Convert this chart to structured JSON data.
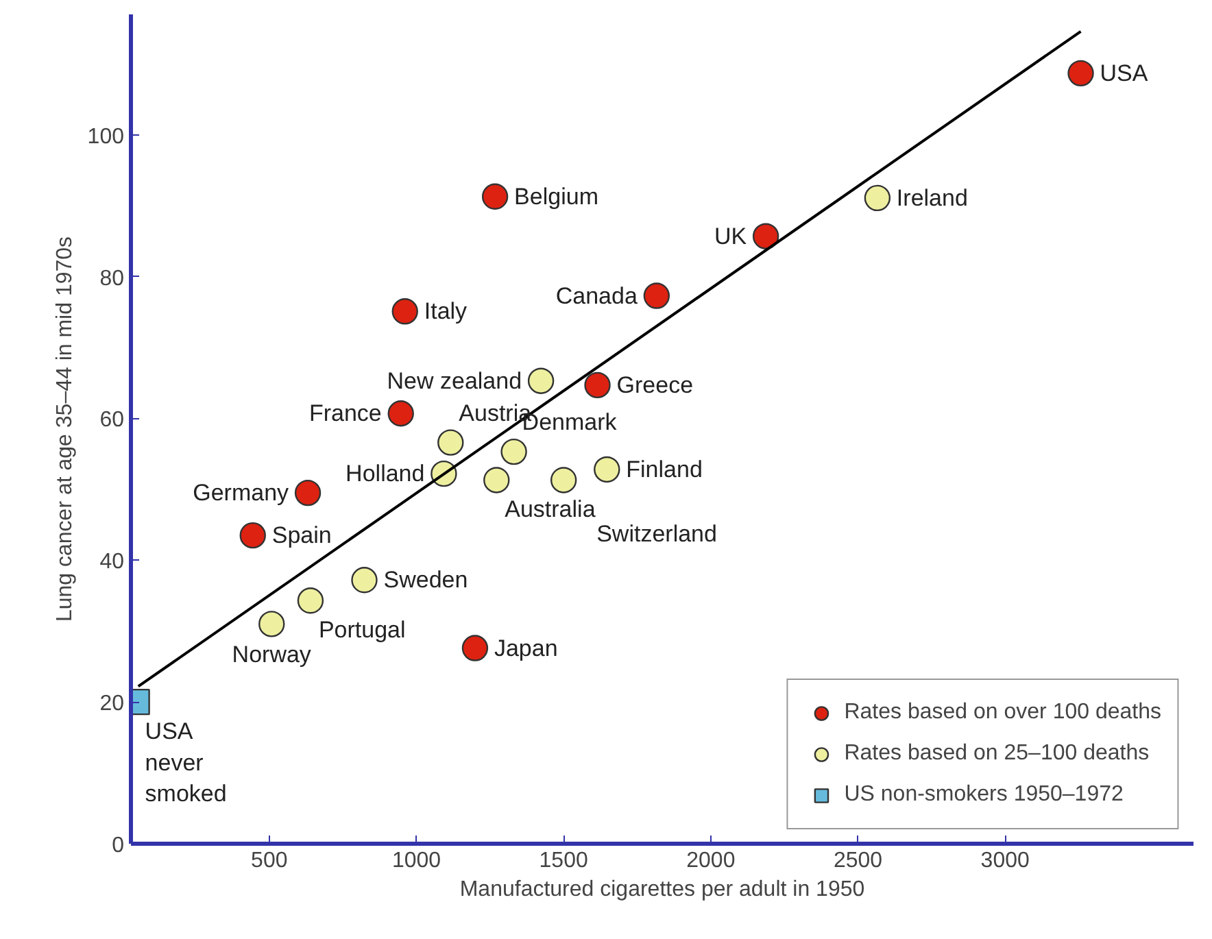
{
  "chart_data": {
    "type": "scatter",
    "xlabel": "Manufactured cigarettes per adult in 1950",
    "ylabel": "Lung cancer at age 35–44 in mid 1970s",
    "xlim": [
      30,
      3640
    ],
    "ylim": [
      0,
      117
    ],
    "xticks": [
      500,
      1000,
      1500,
      2000,
      2500,
      3000
    ],
    "yticks": [
      0,
      20,
      40,
      60,
      80,
      100
    ],
    "grid": false,
    "legend": "bottom right",
    "series": [
      {
        "name": "Rates based on over 100 deaths",
        "color": "#dd2211",
        "marker": "circle",
        "x": [
          3257,
          1267,
          2187,
          961,
          1816,
          1615,
          947,
          631,
          444,
          1199
        ],
        "values": [
          108.7,
          91.3,
          85.7,
          75.1,
          77.3,
          64.7,
          60.7,
          49.5,
          43.5,
          27.6
        ]
      },
      {
        "name": "Rates based on 25–100 deaths",
        "color": "#eef0a0",
        "marker": "circle",
        "x": [
          2566,
          1423,
          1116,
          1331,
          1647,
          1093,
          1272,
          1500,
          823,
          640,
          508
        ],
        "values": [
          91.1,
          65.3,
          56.6,
          55.3,
          52.8,
          52.2,
          51.3,
          51.3,
          37.2,
          34.3,
          31.0
        ]
      },
      {
        "name": "US non-smokers 1950–1972",
        "color": "#66bbdd",
        "marker": "square",
        "x": [
          50
        ],
        "values": [
          20
        ]
      },
      {
        "type": "line",
        "color": "#000000",
        "marker": "none",
        "x": [
          55,
          3257
        ],
        "values": [
          22.2,
          114.6
        ]
      }
    ],
    "annotations": [
      {
        "text": "USA",
        "x": 3257,
        "y": 108.7
      },
      {
        "text": "Belgium",
        "x": 1267,
        "y": 91.3
      },
      {
        "text": "UK",
        "x": 2187,
        "y": 85.7
      },
      {
        "text": "Italy",
        "x": 961,
        "y": 75.1
      },
      {
        "text": "Canada",
        "x": 1816,
        "y": 77.3
      },
      {
        "text": "Greece",
        "x": 1615,
        "y": 64.7
      },
      {
        "text": "France",
        "x": 947,
        "y": 60.7
      },
      {
        "text": "Germany",
        "x": 631,
        "y": 49.5
      },
      {
        "text": "Spain",
        "x": 444,
        "y": 43.5
      },
      {
        "text": "Japan",
        "x": 1199,
        "y": 27.6
      },
      {
        "text": "Ireland",
        "x": 2566,
        "y": 91.1
      },
      {
        "text": "New zealand",
        "x": 1423,
        "y": 65.3
      },
      {
        "text": "Austria",
        "x": 1116,
        "y": 56.6
      },
      {
        "text": "Denmark",
        "x": 1331,
        "y": 55.3
      },
      {
        "text": "Finland",
        "x": 1647,
        "y": 52.8
      },
      {
        "text": "Holland",
        "x": 1093,
        "y": 52.2
      },
      {
        "text": "Australia",
        "x": 1272,
        "y": 51.3
      },
      {
        "text": "Switzerland",
        "x": 1500,
        "y": 51.3
      },
      {
        "text": "Sweden",
        "x": 823,
        "y": 37.2
      },
      {
        "text": "Portugal",
        "x": 640,
        "y": 34.3
      },
      {
        "text": "Norway",
        "x": 508,
        "y": 31.0
      },
      {
        "text": "USA\nnever\nsmoked",
        "x": 50,
        "y": 20
      }
    ]
  }
}
